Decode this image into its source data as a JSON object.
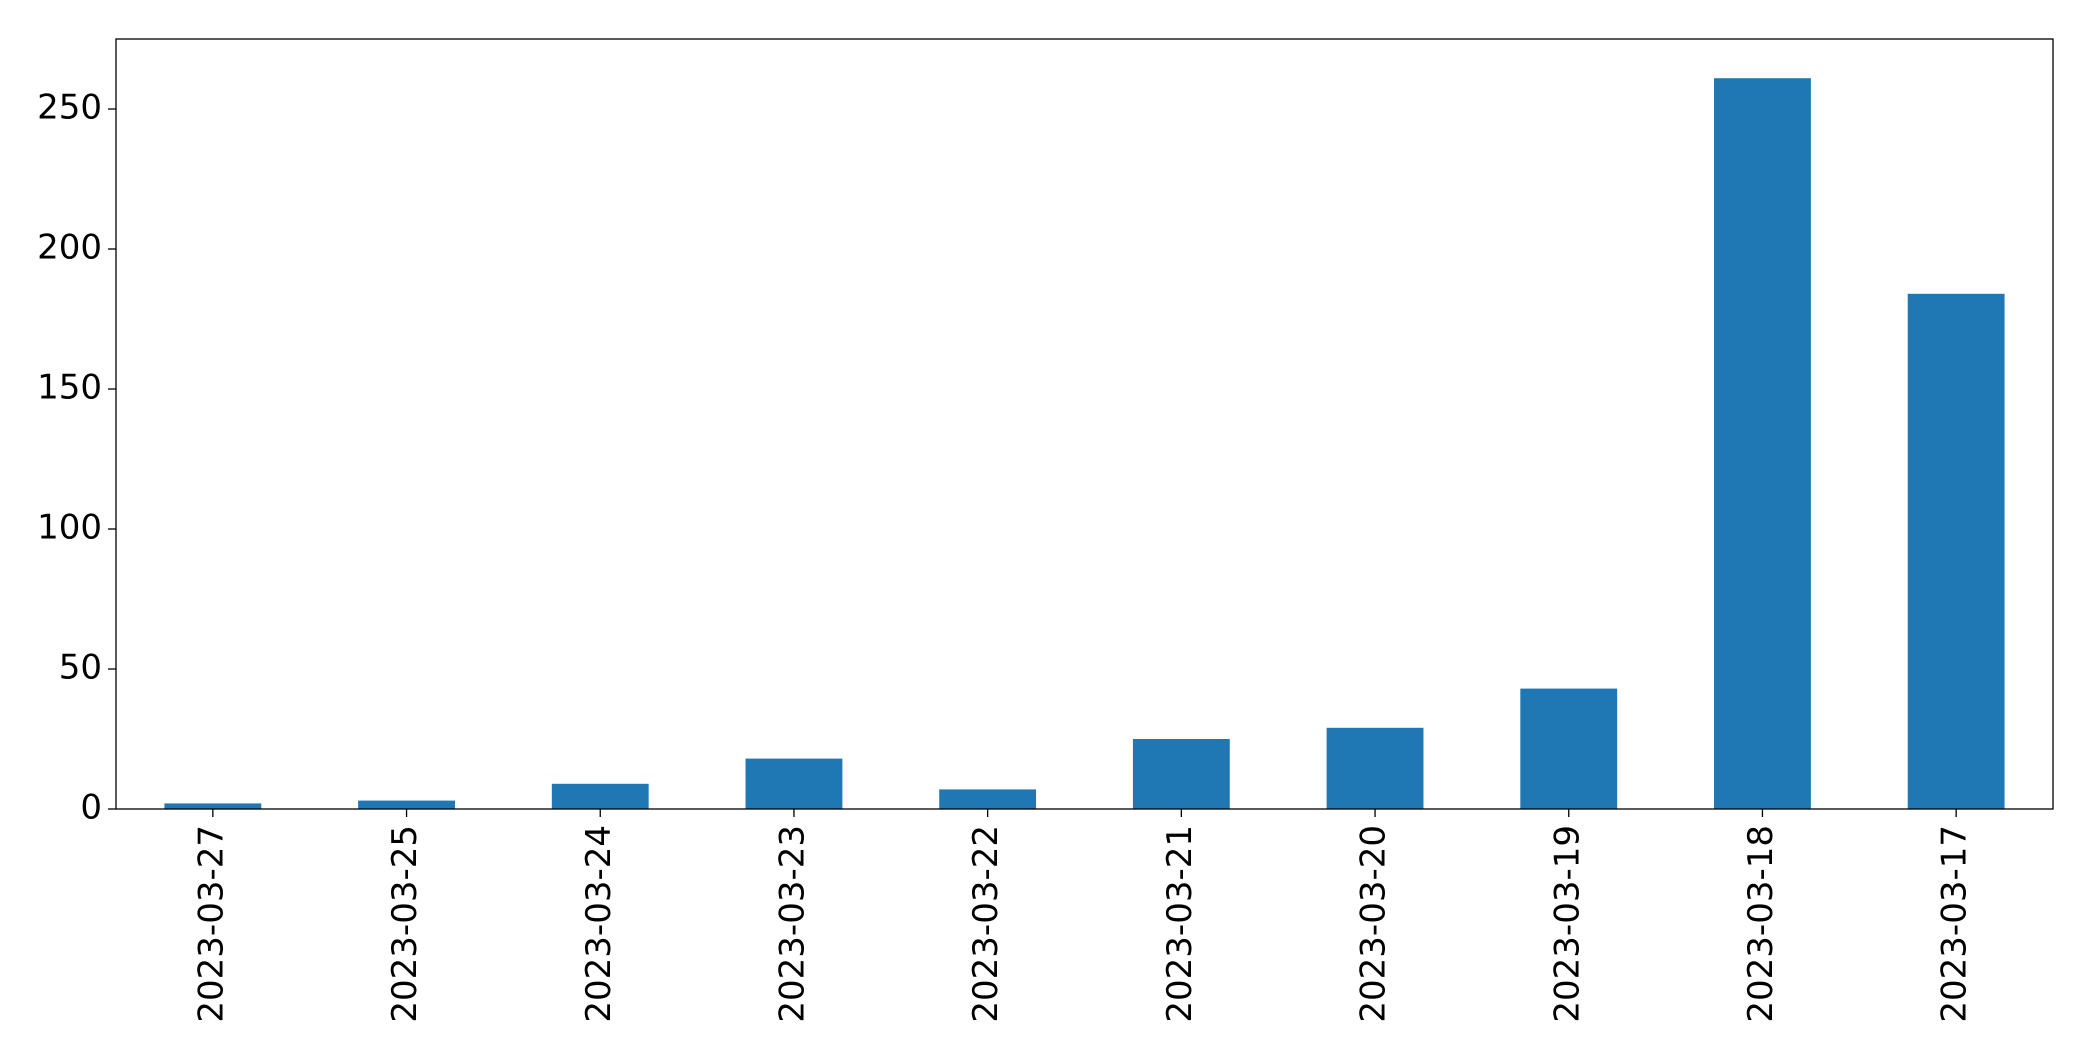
{
  "chart_data": {
    "type": "bar",
    "categories": [
      "2023-03-27",
      "2023-03-25",
      "2023-03-24",
      "2023-03-23",
      "2023-03-22",
      "2023-03-21",
      "2023-03-20",
      "2023-03-19",
      "2023-03-18",
      "2023-03-17"
    ],
    "values": [
      2,
      3,
      9,
      18,
      7,
      25,
      29,
      43,
      261,
      184
    ],
    "color": "#1f77b4",
    "ylim": [
      0,
      275
    ],
    "yticks": [
      0,
      50,
      100,
      150,
      200,
      250
    ],
    "grid": false
  }
}
